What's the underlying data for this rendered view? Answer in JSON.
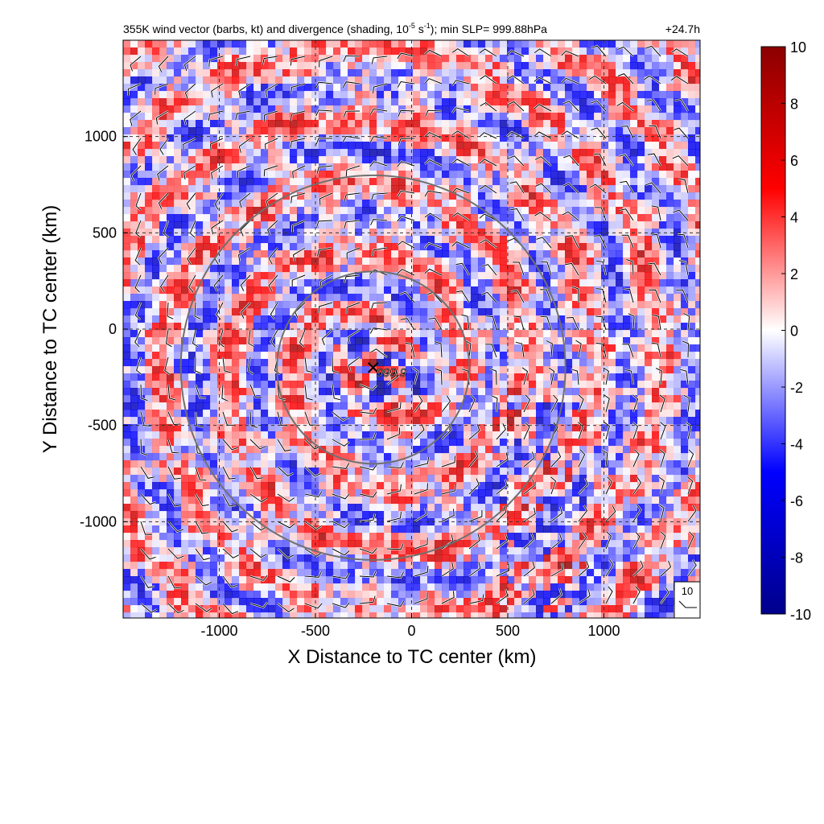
{
  "chart_data": {
    "type": "heatmap",
    "title_main": "355K wind vector (barbs, kt) and divergence (shading, 10",
    "title_exp": "-5",
    "title_mid": " s",
    "title_exp2": "-1",
    "title_tail": "); min SLP= 999.88hPa",
    "time_label": "+24.7h",
    "xlabel": "X Distance to TC center (km)",
    "ylabel": "Y Distance to TC center (km)",
    "xlim": [
      -1500,
      1500
    ],
    "ylim": [
      -1500,
      1500
    ],
    "x_ticks": [
      -1000,
      -500,
      0,
      500,
      1000
    ],
    "y_ticks": [
      1000,
      500,
      0,
      -500,
      -1000
    ],
    "x_tick_labels": [
      "-1000",
      "-500",
      "0",
      "500",
      "1000"
    ],
    "y_tick_labels": [
      "1000",
      "500",
      "0",
      "-500",
      "-1000"
    ],
    "grid": true,
    "colorbar": {
      "min": -10,
      "max": 10,
      "ticks": [
        10,
        8,
        6,
        4,
        2,
        0,
        -2,
        -4,
        -6,
        -8,
        -10
      ],
      "tick_labels": [
        "10",
        "8",
        "6",
        "4",
        "2",
        "0",
        "-2",
        "-4",
        "-6",
        "-8",
        "-10"
      ],
      "colormap": [
        "#00008b",
        "#0000ff",
        "#ffffff",
        "#ff0000",
        "#8b0000"
      ]
    },
    "center_marker": {
      "x": -200,
      "y": -200,
      "label": "999.9"
    },
    "range_circles": [
      {
        "center": [
          -200,
          -200
        ],
        "radius_km": 500
      },
      {
        "center": [
          -200,
          -200
        ],
        "radius_km": 1000
      }
    ],
    "reference_barb": {
      "label": "10",
      "location": "bottom-right"
    }
  }
}
